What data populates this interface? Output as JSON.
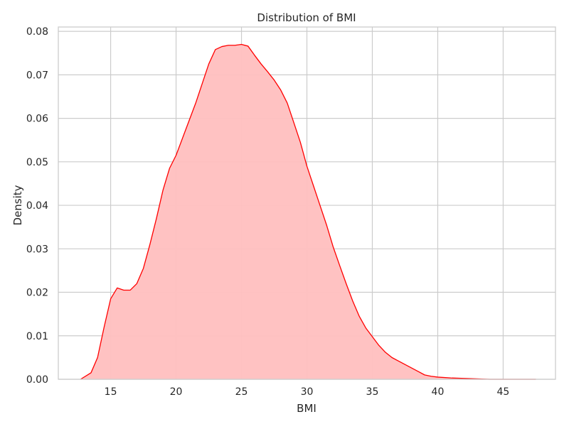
{
  "chart_data": {
    "type": "area",
    "title": "Distribution of BMI",
    "xlabel": "BMI",
    "ylabel": "Density",
    "xlim": [
      11,
      49
    ],
    "ylim": [
      0,
      0.081
    ],
    "xticks": [
      15,
      20,
      25,
      30,
      35,
      40,
      45
    ],
    "yticks": [
      0.0,
      0.01,
      0.02,
      0.03,
      0.04,
      0.05,
      0.06,
      0.07,
      0.08
    ],
    "ytick_labels": [
      "0.00",
      "0.01",
      "0.02",
      "0.03",
      "0.04",
      "0.05",
      "0.06",
      "0.07",
      "0.08"
    ],
    "grid": true,
    "series": [
      {
        "line_color": "#ff0000",
        "fill_color": "#ffbfbf",
        "x": [
          12.7,
          13.5,
          14.0,
          14.5,
          15.0,
          15.5,
          16.0,
          16.5,
          17.0,
          17.5,
          18.0,
          18.5,
          19.0,
          19.5,
          20.0,
          20.5,
          21.0,
          21.5,
          22.0,
          22.5,
          23.0,
          23.5,
          24.0,
          24.5,
          25.0,
          25.5,
          26.0,
          26.5,
          27.0,
          27.5,
          28.0,
          28.5,
          29.0,
          29.5,
          30.0,
          30.5,
          31.0,
          31.5,
          32.0,
          32.5,
          33.0,
          33.5,
          34.0,
          34.5,
          35.0,
          35.5,
          36.0,
          36.5,
          37.0,
          37.5,
          38.0,
          38.5,
          39.0,
          39.5,
          40.0,
          41.0,
          42.0,
          43.0,
          44.0,
          45.0,
          46.0,
          47.5
        ],
        "y": [
          0.0,
          0.0015,
          0.005,
          0.012,
          0.0185,
          0.021,
          0.0205,
          0.0205,
          0.022,
          0.0255,
          0.031,
          0.037,
          0.0435,
          0.0485,
          0.0515,
          0.0555,
          0.0595,
          0.0635,
          0.068,
          0.0725,
          0.0758,
          0.0765,
          0.0768,
          0.0768,
          0.077,
          0.0766,
          0.0745,
          0.0725,
          0.0707,
          0.0688,
          0.0665,
          0.0635,
          0.059,
          0.0545,
          0.049,
          0.0445,
          0.04,
          0.0355,
          0.0305,
          0.0262,
          0.022,
          0.018,
          0.0145,
          0.0118,
          0.0098,
          0.0078,
          0.0062,
          0.005,
          0.0042,
          0.0034,
          0.0026,
          0.0018,
          0.001,
          0.0007,
          0.0005,
          0.0003,
          0.0002,
          0.0001,
          0.0,
          0.0,
          0.0,
          0.0
        ]
      }
    ]
  }
}
